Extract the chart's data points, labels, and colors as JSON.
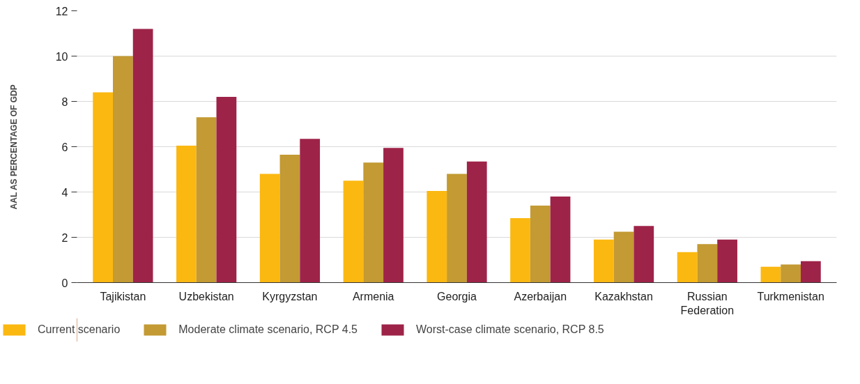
{
  "chart_data": {
    "type": "bar",
    "ylabel": "AAL AS PERCENTAGE OF GDP",
    "categories": [
      "Tajikistan",
      "Uzbekistan",
      "Kyrgyzstan",
      "Armenia",
      "Georgia",
      "Azerbaijan",
      "Kazakhstan",
      "Russian Federation",
      "Turkmenistan"
    ],
    "series": [
      {
        "name": "Current scenario",
        "color": "#fbb811",
        "values": [
          8.4,
          6.05,
          4.8,
          4.5,
          4.05,
          2.85,
          1.9,
          1.35,
          0.7
        ]
      },
      {
        "name": "Moderate climate scenario, RCP 4.5",
        "color": "#c39a33",
        "values": [
          10.0,
          7.3,
          5.65,
          5.3,
          4.8,
          3.4,
          2.25,
          1.7,
          0.8
        ]
      },
      {
        "name": "Worst-case climate scenario, RCP 8.5",
        "color": "#9e2349",
        "values": [
          11.2,
          8.2,
          6.35,
          5.95,
          5.35,
          3.8,
          2.5,
          1.9,
          0.95
        ]
      }
    ],
    "ylim": [
      0,
      12
    ],
    "yticks": [
      0,
      2,
      4,
      6,
      8,
      10,
      12
    ],
    "grid": "y",
    "legend": "bottom"
  }
}
